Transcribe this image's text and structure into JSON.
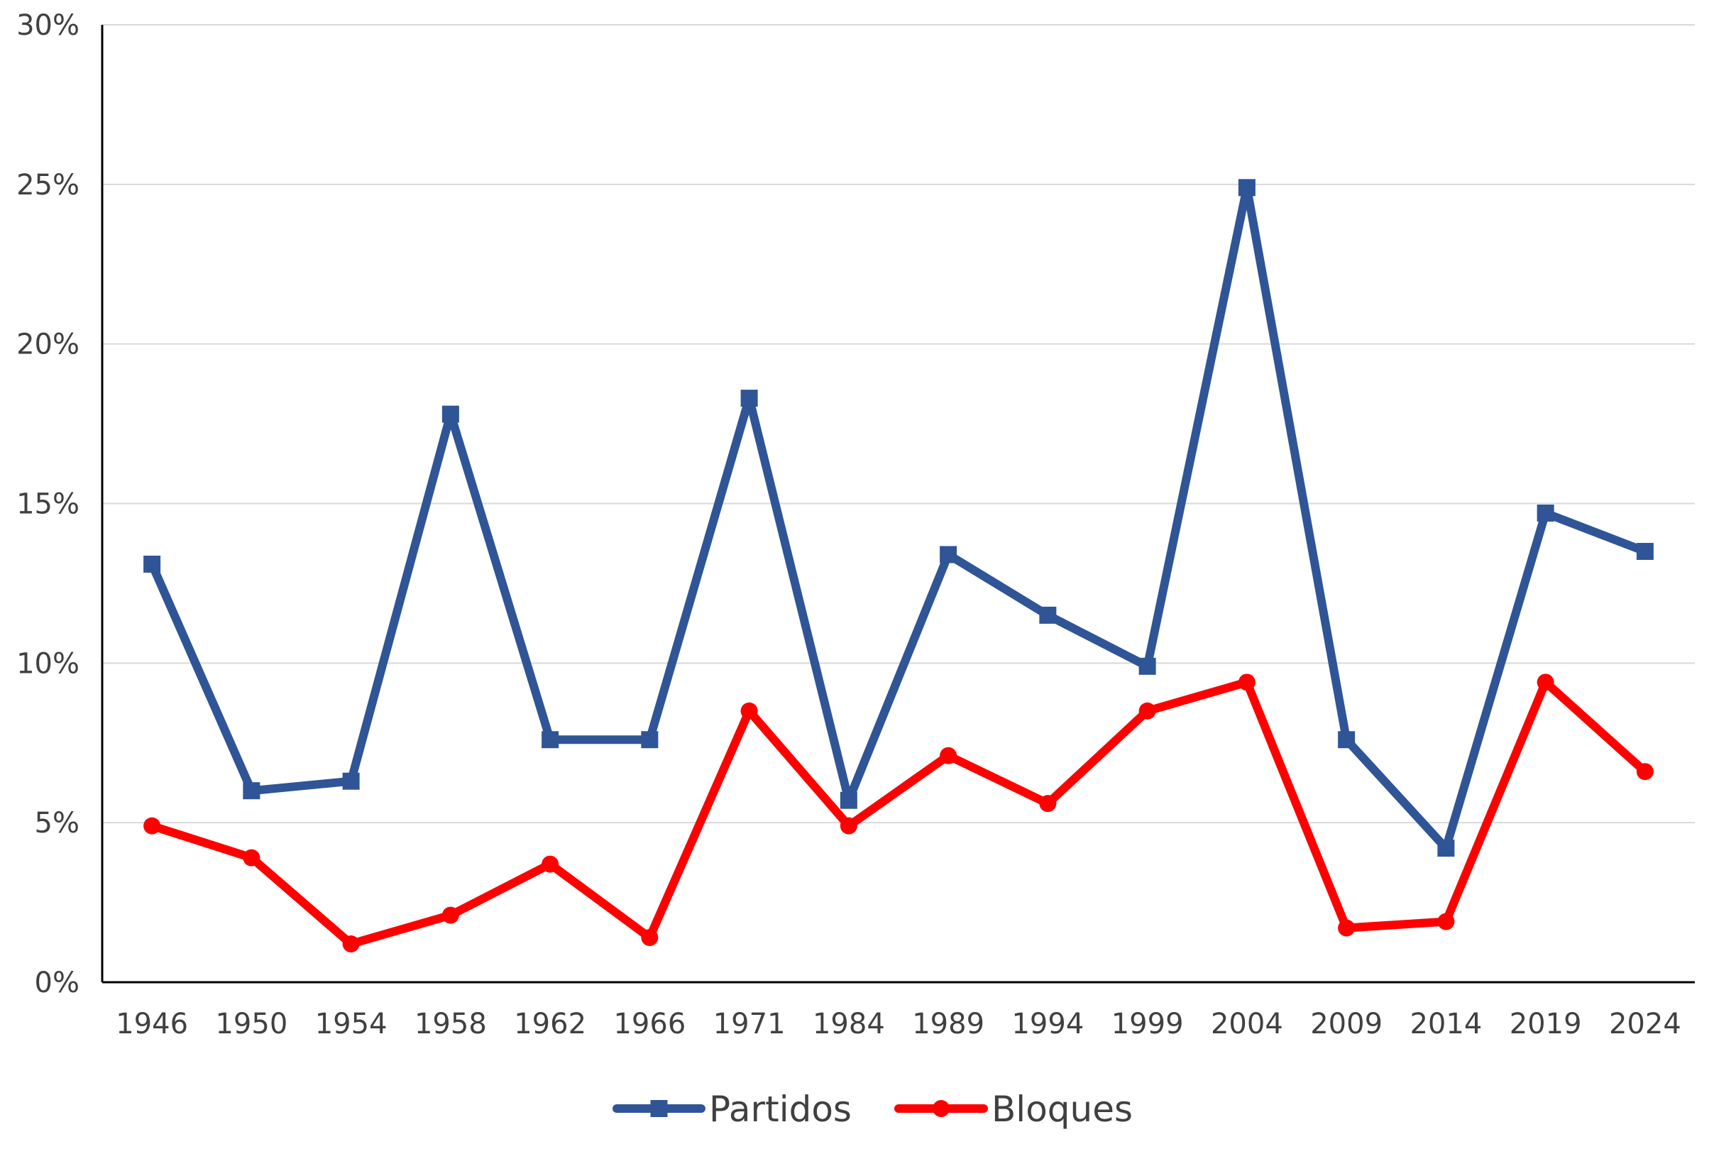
{
  "chart_data": {
    "type": "line",
    "title": "",
    "xlabel": "",
    "ylabel": "",
    "categories": [
      "1946",
      "1950",
      "1954",
      "1958",
      "1962",
      "1966",
      "1971",
      "1984",
      "1989",
      "1994",
      "1999",
      "2004",
      "2009",
      "2014",
      "2019",
      "2024"
    ],
    "ylim": [
      0,
      30
    ],
    "yticks": [
      0,
      5,
      10,
      15,
      20,
      25,
      30
    ],
    "ytick_labels": [
      "0%",
      "5%",
      "10%",
      "15%",
      "20%",
      "25%",
      "30%"
    ],
    "grid": true,
    "legend_position": "bottom",
    "series": [
      {
        "name": "Partidos",
        "color": "#2F5597",
        "marker": "square",
        "values": [
          13.1,
          6.0,
          6.3,
          17.8,
          7.6,
          7.6,
          18.3,
          5.7,
          13.4,
          11.5,
          9.9,
          24.9,
          7.6,
          4.2,
          14.7,
          13.5
        ]
      },
      {
        "name": "Bloques",
        "color": "#FF0000",
        "marker": "circle",
        "values": [
          4.9,
          3.9,
          1.2,
          2.1,
          3.7,
          1.4,
          8.5,
          4.9,
          7.1,
          5.6,
          8.5,
          9.4,
          1.7,
          1.9,
          9.4,
          6.6
        ]
      }
    ]
  }
}
